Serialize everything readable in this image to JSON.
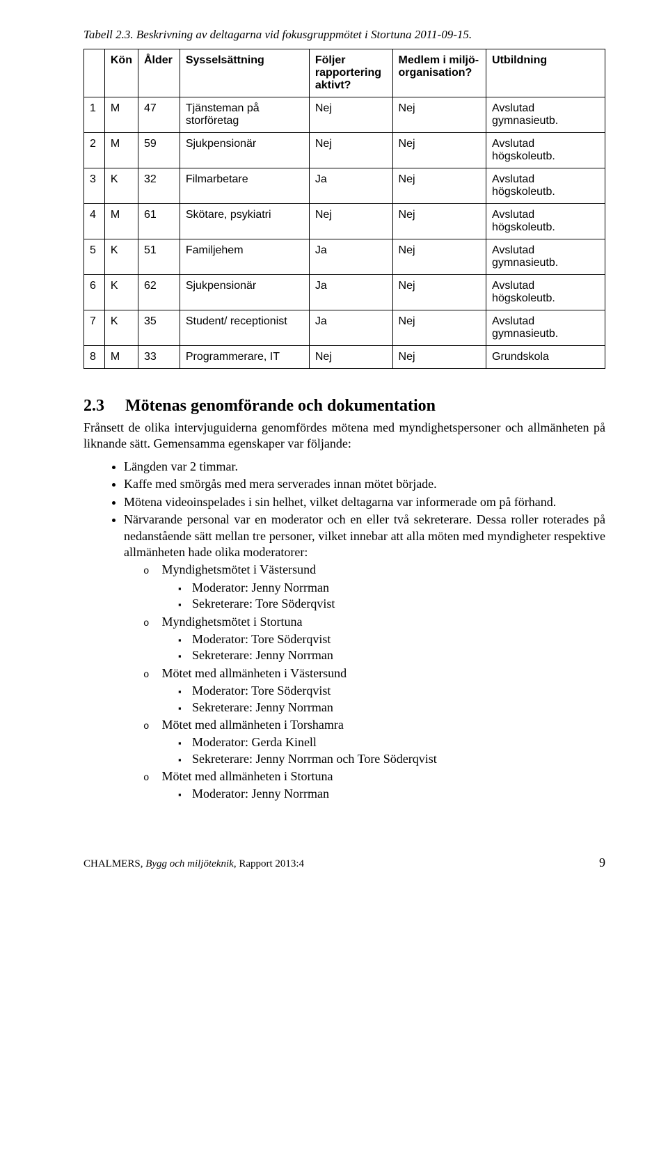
{
  "caption": "Tabell 2.3. Beskrivning av deltagarna vid fokusgruppmötet i Stortuna 2011-09-15.",
  "table": {
    "headers": [
      "",
      "Kön",
      "Ålder",
      "Sysselsättning",
      "Följer rapportering aktivt?",
      "Medlem i miljö-organisation?",
      "Utbildning"
    ],
    "rows": [
      [
        "1",
        "M",
        "47",
        "Tjänsteman på storföretag",
        "Nej",
        "Nej",
        "Avslutad gymnasieutb."
      ],
      [
        "2",
        "M",
        "59",
        "Sjukpensionär",
        "Nej",
        "Nej",
        "Avslutad högskoleutb."
      ],
      [
        "3",
        "K",
        "32",
        "Filmarbetare",
        "Ja",
        "Nej",
        "Avslutad högskoleutb."
      ],
      [
        "4",
        "M",
        "61",
        "Skötare, psykiatri",
        "Nej",
        "Nej",
        "Avslutad högskoleutb."
      ],
      [
        "5",
        "K",
        "51",
        "Familjehem",
        "Ja",
        "Nej",
        "Avslutad gymnasieutb."
      ],
      [
        "6",
        "K",
        "62",
        "Sjukpensionär",
        "Ja",
        "Nej",
        "Avslutad högskoleutb."
      ],
      [
        "7",
        "K",
        "35",
        "Student/ receptionist",
        "Ja",
        "Nej",
        "Avslutad gymnasieutb."
      ],
      [
        "8",
        "M",
        "33",
        "Programmerare, IT",
        "Nej",
        "Nej",
        "Grundskola"
      ]
    ]
  },
  "section": {
    "number": "2.3",
    "title": "Mötenas genomförande och dokumentation",
    "intro": "Frånsett de olika intervjuguiderna genomfördes mötena med myndighetspersoner och allmänheten på liknande sätt. Gemensamma egenskaper var följande:",
    "bullets": {
      "b1": "Längden var 2 timmar.",
      "b2": "Kaffe med smörgås med mera serverades innan mötet började.",
      "b3": "Mötena videoinspelades i sin helhet, vilket deltagarna var informerade om på förhand.",
      "b4": "Närvarande personal var en moderator och en eller två sekreterare. Dessa roller roterades på nedanstående sätt mellan tre personer, vilket innebar att alla möten med myndigheter respektive allmänheten hade olika moderatorer:"
    },
    "meetings": {
      "m1": {
        "title": "Myndighetsmötet i Västersund",
        "mod": "Moderator: Jenny Norrman",
        "sek": "Sekreterare: Tore Söderqvist"
      },
      "m2": {
        "title": "Myndighetsmötet i Stortuna",
        "mod": "Moderator: Tore Söderqvist",
        "sek": "Sekreterare: Jenny Norrman"
      },
      "m3": {
        "title": "Mötet med allmänheten i Västersund",
        "mod": "Moderator: Tore Söderqvist",
        "sek": "Sekreterare: Jenny Norrman"
      },
      "m4": {
        "title": "Mötet med allmänheten i Torshamra",
        "mod": "Moderator: Gerda Kinell",
        "sek": "Sekreterare: Jenny Norrman och Tore Söderqvist"
      },
      "m5": {
        "title": "Mötet med allmänheten i Stortuna",
        "mod": "Moderator: Jenny Norrman"
      }
    }
  },
  "footer": {
    "publisher": "CHALMERS",
    "series": ", Bygg och miljöteknik",
    "report": ", Rapport 2013:4",
    "pagenum": "9"
  }
}
